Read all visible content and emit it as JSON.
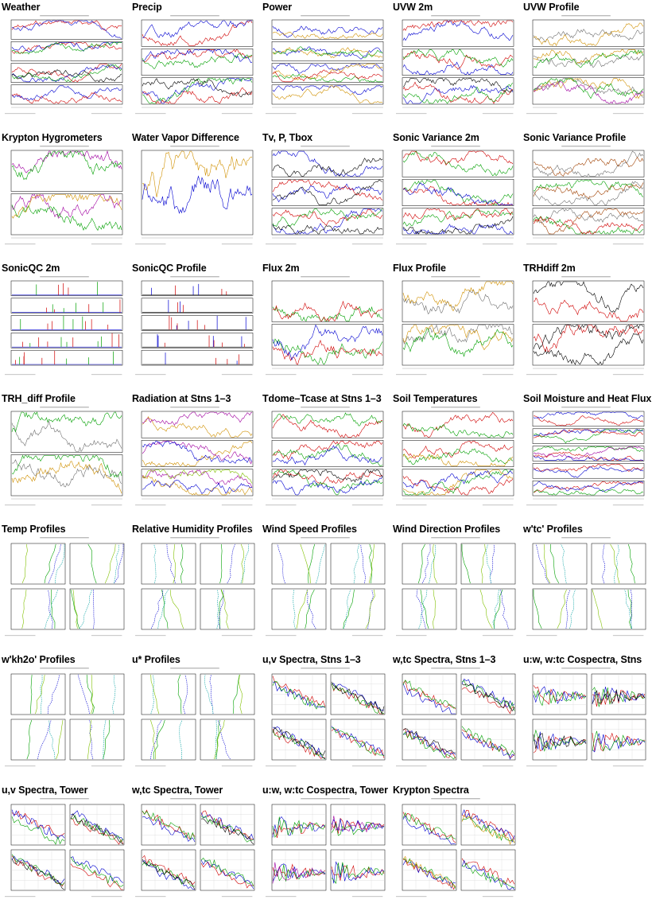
{
  "thumbnails": [
    {
      "title": "Weather",
      "kind": "ts",
      "panels": 4,
      "series": [
        "#d00000",
        "#0000d0",
        "#00a000",
        "#000000"
      ]
    },
    {
      "title": "Precip",
      "kind": "ts",
      "panels": 3,
      "series": [
        "#d00000",
        "#0000d0",
        "#00a000",
        "#000000"
      ]
    },
    {
      "title": "Power",
      "kind": "ts",
      "panels": 4,
      "series": [
        "#0000d0",
        "#d09000",
        "#00a000",
        "#d00000"
      ]
    },
    {
      "title": "UVW 2m",
      "kind": "ts",
      "panels": 3,
      "series": [
        "#0000d0",
        "#d00000",
        "#00a000",
        "#000000"
      ]
    },
    {
      "title": "UVW Profile",
      "kind": "ts",
      "panels": 3,
      "series": [
        "#707070",
        "#d09000",
        "#00a000",
        "#a000a0"
      ]
    },
    {
      "title": "Krypton Hygrometers",
      "kind": "ts",
      "panels": 2,
      "series": [
        "#a000a0",
        "#00a000",
        "#d09000",
        "#0000d0"
      ]
    },
    {
      "title": "Water Vapor Difference",
      "kind": "ts",
      "panels": 1,
      "series": [
        "#d09000",
        "#0000d0",
        "#000000",
        "#a000a0"
      ]
    },
    {
      "title": "Tv, P, Tbox",
      "kind": "ts",
      "panels": 3,
      "series": [
        "#0000d0",
        "#000000",
        "#d00000",
        "#00a000"
      ]
    },
    {
      "title": "Sonic Variance 2m",
      "kind": "ts",
      "panels": 3,
      "series": [
        "#00a000",
        "#d00000",
        "#0000d0",
        "#000000"
      ]
    },
    {
      "title": "Sonic Variance Profile",
      "kind": "ts",
      "panels": 3,
      "series": [
        "#707070",
        "#a04000",
        "#00a000",
        "#d00000"
      ]
    },
    {
      "title": "SonicQC 2m",
      "kind": "spikes",
      "panels": 5,
      "series": [
        "#d00000",
        "#0000d0",
        "#00a000",
        "#000000"
      ]
    },
    {
      "title": "SonicQC Profile",
      "kind": "spikes",
      "panels": 5,
      "series": [
        "#d00000",
        "#000000",
        "#0000d0",
        "#00a000"
      ]
    },
    {
      "title": "Flux 2m",
      "kind": "ts",
      "panels": 2,
      "series": [
        "#00a000",
        "#d00000",
        "#0000d0",
        "#000000"
      ]
    },
    {
      "title": "Flux Profile",
      "kind": "ts",
      "panels": 2,
      "series": [
        "#707070",
        "#d09000",
        "#00a000",
        "#0000d0"
      ]
    },
    {
      "title": "TRHdiff 2m",
      "kind": "ts",
      "panels": 2,
      "series": [
        "#000000",
        "#d00000",
        "#000000",
        "#d00000"
      ]
    },
    {
      "title": "TRH_diff Profile",
      "kind": "ts",
      "panels": 2,
      "series": [
        "#707070",
        "#00a000",
        "#d09000",
        "#0000d0"
      ]
    },
    {
      "title": "Radiation at Stns 1–3",
      "kind": "ts",
      "panels": 3,
      "series": [
        "#d09000",
        "#a000a0",
        "#0000d0",
        "#80c000"
      ]
    },
    {
      "title": "Tdome–Tcase at Stns 1–3",
      "kind": "ts",
      "panels": 3,
      "series": [
        "#d00000",
        "#00a000",
        "#0000d0",
        "#000000"
      ]
    },
    {
      "title": "Soil Temperatures",
      "kind": "ts",
      "panels": 3,
      "series": [
        "#d00000",
        "#00a000",
        "#d09000",
        "#0000d0"
      ]
    },
    {
      "title": "Soil Moisture and Heat Flux",
      "kind": "ts",
      "panels": 5,
      "series": [
        "#d00000",
        "#0000d0",
        "#00a000",
        "#a000a0"
      ]
    },
    {
      "title": "Temp Profiles",
      "kind": "profile",
      "panels": 4,
      "series": [
        "#00a000",
        "#0000d0",
        "#80c000",
        "#00a0a0"
      ]
    },
    {
      "title": "Relative Humidity Profiles",
      "kind": "profile",
      "panels": 4,
      "series": [
        "#00a000",
        "#0000d0",
        "#80c000",
        "#00a0a0"
      ]
    },
    {
      "title": "Wind Speed Profiles",
      "kind": "profile",
      "panels": 4,
      "series": [
        "#00a000",
        "#0000d0",
        "#80c000",
        "#00a0a0"
      ]
    },
    {
      "title": "Wind Direction Profiles",
      "kind": "profile",
      "panels": 4,
      "series": [
        "#00a000",
        "#0000d0",
        "#80c000",
        "#00a0a0"
      ]
    },
    {
      "title": "w'tc' Profiles",
      "kind": "profile",
      "panels": 4,
      "series": [
        "#00a000",
        "#0000d0",
        "#80c000",
        "#00a0a0"
      ]
    },
    {
      "title": "w'kh2o' Profiles",
      "kind": "profile",
      "panels": 4,
      "series": [
        "#00a000",
        "#0000d0",
        "#80c000",
        "#00a0a0"
      ]
    },
    {
      "title": "u* Profiles",
      "kind": "profile",
      "panels": 4,
      "series": [
        "#00a000",
        "#0000d0",
        "#80c000",
        "#00a0a0"
      ]
    },
    {
      "title": "u,v Spectra, Stns 1–3",
      "kind": "spectra",
      "panels": 4,
      "series": [
        "#d00000",
        "#0000d0",
        "#00a000",
        "#000000"
      ]
    },
    {
      "title": "w,tc Spectra, Stns 1–3",
      "kind": "spectra",
      "panels": 4,
      "series": [
        "#d00000",
        "#0000d0",
        "#00a000",
        "#000000"
      ]
    },
    {
      "title": "u:w, w:tc Cospectra, Stns",
      "kind": "cospectra",
      "panels": 4,
      "series": [
        "#d00000",
        "#0000d0",
        "#00a000",
        "#000000"
      ]
    },
    {
      "title": "u,v Spectra, Tower",
      "kind": "spectra",
      "panels": 4,
      "series": [
        "#d00000",
        "#0000d0",
        "#00a000",
        "#000000",
        "#d09000"
      ]
    },
    {
      "title": "w,tc Spectra, Tower",
      "kind": "spectra",
      "panels": 4,
      "series": [
        "#d00000",
        "#0000d0",
        "#00a000",
        "#000000",
        "#d09000"
      ]
    },
    {
      "title": "u:w, w:tc Cospectra, Tower",
      "kind": "cospectra",
      "panels": 4,
      "series": [
        "#d00000",
        "#0000d0",
        "#00a000",
        "#a000a0",
        "#d09000"
      ]
    },
    {
      "title": "Krypton Spectra",
      "kind": "spectra",
      "panels": 4,
      "series": [
        "#d00000",
        "#0000d0",
        "#00a000",
        "#d09000"
      ]
    }
  ]
}
